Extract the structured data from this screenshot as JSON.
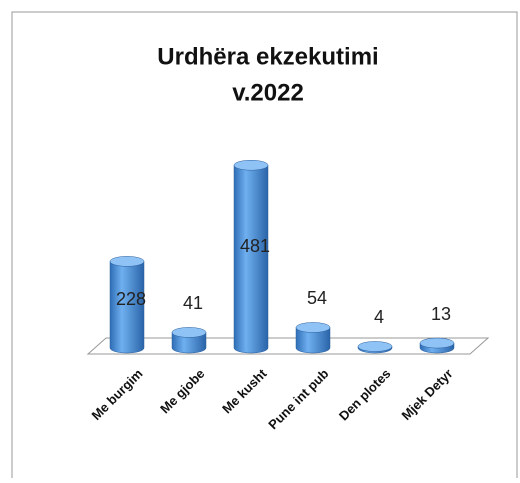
{
  "chart_data": {
    "type": "bar3d",
    "title": [
      "Urdhëra ekzekutimi",
      "v.2022"
    ],
    "categories": [
      "Me burgim",
      "Me gjobe",
      "Me kusht",
      "Pune int pub",
      "Den plotes",
      "Mjek Detyr"
    ],
    "values": [
      228,
      41,
      481,
      54,
      4,
      13
    ],
    "color": "#4f8fd6"
  }
}
